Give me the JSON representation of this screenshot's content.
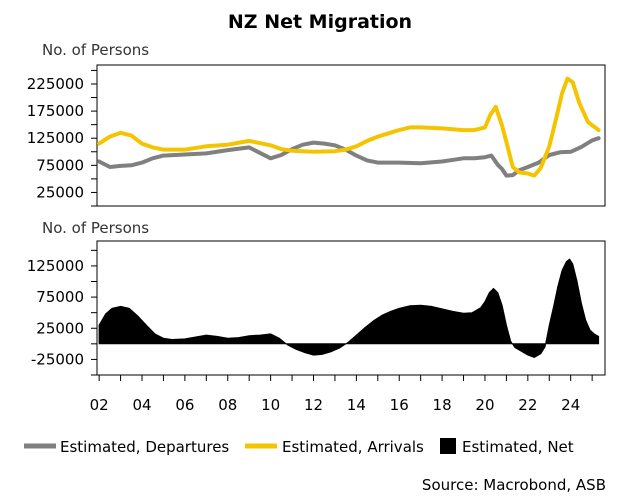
{
  "chart_data": {
    "type": "line",
    "title": "NZ Net Migration",
    "source": "Source: Macrobond, ASB",
    "x_tick_labels": [
      "02",
      "04",
      "06",
      "08",
      "10",
      "12",
      "14",
      "16",
      "18",
      "20",
      "22",
      "24"
    ],
    "x_ticks": [
      2002,
      2004,
      2006,
      2008,
      2010,
      2012,
      2014,
      2016,
      2018,
      2020,
      2022,
      2024
    ],
    "xlim": [
      2001.9,
      2025.6
    ],
    "panels": [
      {
        "ylabel": "No. of Persons",
        "ylim": [
          0,
          260000
        ],
        "y_ticks": [
          25000,
          75000,
          125000,
          175000,
          225000
        ],
        "y_tick_labels": [
          "25000",
          "75000",
          "125000",
          "175000",
          "225000"
        ],
        "series": [
          {
            "name": "Estimated, Departures",
            "color": "#808080",
            "x": [
              2002.0,
              2002.5,
              2003.0,
              2003.5,
              2004.0,
              2004.5,
              2005.0,
              2006.0,
              2007.0,
              2008.0,
              2009.0,
              2010.0,
              2010.5,
              2011.0,
              2011.5,
              2012.0,
              2012.5,
              2013.0,
              2013.5,
              2014.0,
              2014.5,
              2015.0,
              2016.0,
              2017.0,
              2018.0,
              2019.0,
              2019.5,
              2020.0,
              2020.3,
              2020.6,
              2020.8,
              2021.0,
              2021.3,
              2021.6,
              2022.0,
              2022.5,
              2023.0,
              2023.5,
              2024.0,
              2024.5,
              2025.0,
              2025.3
            ],
            "values": [
              82000,
              72000,
              74000,
              75000,
              80000,
              88000,
              93000,
              95000,
              97000,
              103000,
              108000,
              88000,
              94000,
              105000,
              113000,
              117000,
              115000,
              112000,
              104000,
              93000,
              84000,
              80000,
              80000,
              79000,
              82000,
              88000,
              88000,
              90000,
              93000,
              76000,
              68000,
              56000,
              57000,
              66000,
              72000,
              80000,
              94000,
              99000,
              100000,
              109000,
              121000,
              125000
            ]
          },
          {
            "name": "Estimated, Arrivals",
            "color": "#F5C400",
            "x": [
              2002.0,
              2002.5,
              2003.0,
              2003.5,
              2004.0,
              2004.5,
              2005.0,
              2006.0,
              2007.0,
              2008.0,
              2009.0,
              2010.0,
              2010.5,
              2011.0,
              2012.0,
              2013.0,
              2013.5,
              2014.0,
              2014.5,
              2015.0,
              2016.0,
              2016.5,
              2017.0,
              2018.0,
              2019.0,
              2019.5,
              2020.0,
              2020.25,
              2020.5,
              2020.8,
              2021.0,
              2021.3,
              2021.6,
              2022.0,
              2022.3,
              2022.6,
              2023.0,
              2023.3,
              2023.6,
              2023.85,
              2024.1,
              2024.4,
              2024.8,
              2025.3
            ],
            "values": [
              115000,
              128000,
              135000,
              130000,
              115000,
              108000,
              104000,
              104000,
              110000,
              113000,
              120000,
              112000,
              105000,
              102000,
              100000,
              101000,
              104000,
              110000,
              120000,
              128000,
              140000,
              145000,
              145000,
              143000,
              140000,
              140000,
              145000,
              168000,
              183000,
              148000,
              118000,
              72000,
              62000,
              60000,
              56000,
              70000,
              110000,
              158000,
              208000,
              235000,
              228000,
              190000,
              155000,
              140000
            ]
          }
        ]
      },
      {
        "ylabel": "No. of Persons",
        "ylim": [
          -50000,
          165000
        ],
        "y_ticks": [
          -25000,
          25000,
          75000,
          125000
        ],
        "y_tick_labels": [
          "-25000",
          "25000",
          "75000",
          "125000"
        ],
        "series": [
          {
            "name": "Estimated, Net",
            "type": "bar",
            "color": "#000000",
            "x": [
              2002.0,
              2002.3,
              2002.6,
              2003.0,
              2003.4,
              2003.8,
              2004.2,
              2004.6,
              2005.0,
              2005.4,
              2006.0,
              2006.5,
              2007.0,
              2007.5,
              2008.0,
              2008.5,
              2009.0,
              2009.5,
              2010.0,
              2010.4,
              2010.8,
              2011.2,
              2011.6,
              2012.0,
              2012.4,
              2012.8,
              2013.2,
              2013.6,
              2014.0,
              2014.4,
              2014.8,
              2015.2,
              2015.6,
              2016.0,
              2016.5,
              2017.0,
              2017.5,
              2018.0,
              2018.5,
              2019.0,
              2019.4,
              2019.8,
              2020.0,
              2020.2,
              2020.4,
              2020.6,
              2020.8,
              2021.0,
              2021.2,
              2021.4,
              2021.6,
              2021.8,
              2022.0,
              2022.3,
              2022.6,
              2022.8,
              2023.0,
              2023.2,
              2023.4,
              2023.6,
              2023.8,
              2023.95,
              2024.1,
              2024.3,
              2024.5,
              2024.7,
              2024.9,
              2025.1,
              2025.3
            ],
            "values": [
              30000,
              48000,
              57000,
              60000,
              57000,
              45000,
              30000,
              16000,
              9000,
              7000,
              8000,
              11000,
              14000,
              12000,
              9000,
              10000,
              13000,
              14000,
              16000,
              9000,
              -2000,
              -9000,
              -14000,
              -18000,
              -17000,
              -13000,
              -7000,
              2000,
              14000,
              26000,
              37000,
              46000,
              52000,
              57000,
              61000,
              62000,
              60000,
              56000,
              52000,
              49000,
              50000,
              58000,
              68000,
              82000,
              89000,
              82000,
              62000,
              30000,
              4000,
              -6000,
              -10000,
              -14000,
              -18000,
              -22000,
              -16000,
              -5000,
              30000,
              60000,
              92000,
              118000,
              132000,
              136000,
              128000,
              100000,
              65000,
              38000,
              22000,
              16000,
              12000
            ]
          }
        ]
      }
    ],
    "legend": {
      "position": "bottom",
      "items": [
        {
          "label": "Estimated, Departures",
          "color": "#808080",
          "kind": "line"
        },
        {
          "label": "Estimated, Arrivals",
          "color": "#F5C400",
          "kind": "line"
        },
        {
          "label": "Estimated, Net",
          "color": "#000000",
          "kind": "box"
        }
      ]
    }
  }
}
